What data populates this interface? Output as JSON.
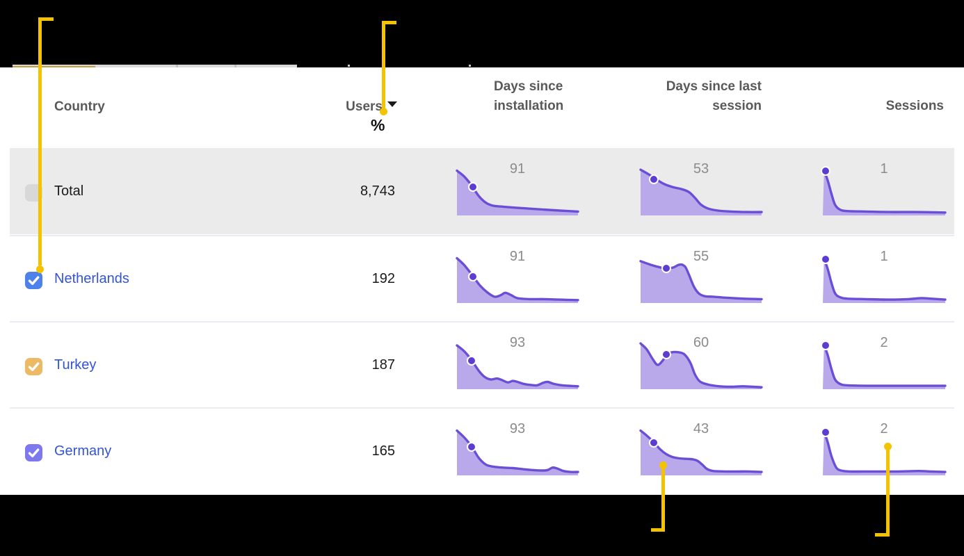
{
  "header": {
    "country": "Country",
    "users": "Users",
    "percent": "%",
    "days_since_installation": "Days since installation",
    "days_since_last_session": "Days since last session",
    "sessions": "Sessions",
    "users_sort_icon": "sort-desc-arrow"
  },
  "colors": {
    "sparkline_stroke": "#6b4ed6",
    "sparkline_fill": "#b9a9ea",
    "sparkline_dot": "#5d3cd2",
    "callout": "#f4c300",
    "link_blue": "#3354d4",
    "total_row_bg": "#ebebeb",
    "header_text": "#595959",
    "value_label_gray": "#8b8b8b",
    "checkbox_netherlands": "#4f81ea",
    "checkbox_turkey": "#ecb964",
    "checkbox_germany": "#7d78ee",
    "checkbox_total_disabled": "#d8d8d8"
  },
  "rows": [
    {
      "label": "Total",
      "users": "8,743",
      "is_total": true,
      "checkbox": {
        "checked": false,
        "color": "#d8d8d8"
      },
      "charts": [
        {
          "column": "days_since_installation",
          "value": "91",
          "dot": [
            13,
            41
          ],
          "points": [
            [
              0,
              8
            ],
            [
              6,
              20
            ],
            [
              12,
              38
            ],
            [
              18,
              60
            ],
            [
              24,
              74
            ],
            [
              30,
              80
            ],
            [
              38,
              82
            ],
            [
              48,
              84
            ],
            [
              60,
              86
            ],
            [
              72,
              88
            ],
            [
              85,
              90
            ],
            [
              100,
              92
            ]
          ]
        },
        {
          "column": "days_since_last_session",
          "value": "53",
          "dot": [
            11,
            25
          ],
          "points": [
            [
              0,
              6
            ],
            [
              7,
              16
            ],
            [
              13,
              26
            ],
            [
              20,
              36
            ],
            [
              27,
              42
            ],
            [
              34,
              46
            ],
            [
              40,
              52
            ],
            [
              45,
              64
            ],
            [
              50,
              78
            ],
            [
              56,
              86
            ],
            [
              64,
              90
            ],
            [
              75,
              92
            ],
            [
              88,
              93
            ],
            [
              100,
              93
            ]
          ]
        },
        {
          "column": "sessions",
          "value": "1",
          "dot": [
            2,
            9
          ],
          "points": [
            [
              1,
              8
            ],
            [
              4,
              28
            ],
            [
              7,
              55
            ],
            [
              10,
              78
            ],
            [
              14,
              88
            ],
            [
              20,
              91
            ],
            [
              35,
              92
            ],
            [
              55,
              93
            ],
            [
              75,
              93
            ],
            [
              100,
              94
            ]
          ]
        }
      ]
    },
    {
      "label": "Netherlands",
      "users": "192",
      "is_total": false,
      "checkbox": {
        "checked": true,
        "color": "#4f81ea"
      },
      "charts": [
        {
          "column": "days_since_installation",
          "value": "91",
          "dot": [
            13,
            45
          ],
          "points": [
            [
              0,
              8
            ],
            [
              6,
              22
            ],
            [
              13,
              44
            ],
            [
              19,
              64
            ],
            [
              25,
              78
            ],
            [
              31,
              87
            ],
            [
              36,
              84
            ],
            [
              40,
              79
            ],
            [
              45,
              84
            ],
            [
              50,
              90
            ],
            [
              60,
              92
            ],
            [
              72,
              92
            ],
            [
              85,
              93
            ],
            [
              100,
              94
            ]
          ]
        },
        {
          "column": "days_since_last_session",
          "value": "55",
          "dot": [
            21,
            29
          ],
          "points": [
            [
              0,
              14
            ],
            [
              8,
              21
            ],
            [
              15,
              26
            ],
            [
              21,
              29
            ],
            [
              27,
              27
            ],
            [
              31,
              22
            ],
            [
              34,
              21
            ],
            [
              37,
              26
            ],
            [
              40,
              42
            ],
            [
              44,
              66
            ],
            [
              48,
              80
            ],
            [
              53,
              86
            ],
            [
              60,
              87
            ],
            [
              70,
              89
            ],
            [
              85,
              91
            ],
            [
              100,
              92
            ]
          ]
        },
        {
          "column": "sessions",
          "value": "1",
          "dot": [
            2,
            10
          ],
          "points": [
            [
              1,
              9
            ],
            [
              4,
              30
            ],
            [
              7,
              58
            ],
            [
              10,
              80
            ],
            [
              14,
              88
            ],
            [
              20,
              91
            ],
            [
              35,
              92
            ],
            [
              55,
              93
            ],
            [
              70,
              92
            ],
            [
              80,
              90
            ],
            [
              88,
              91
            ],
            [
              100,
              93
            ]
          ]
        }
      ]
    },
    {
      "label": "Turkey",
      "users": "187",
      "is_total": false,
      "checkbox": {
        "checked": true,
        "color": "#ecb964"
      },
      "charts": [
        {
          "column": "days_since_installation",
          "value": "93",
          "dot": [
            12,
            41
          ],
          "points": [
            [
              0,
              10
            ],
            [
              6,
              22
            ],
            [
              12,
              40
            ],
            [
              18,
              62
            ],
            [
              23,
              75
            ],
            [
              28,
              80
            ],
            [
              33,
              78
            ],
            [
              37,
              81
            ],
            [
              42,
              86
            ],
            [
              46,
              83
            ],
            [
              50,
              85
            ],
            [
              55,
              89
            ],
            [
              60,
              91
            ],
            [
              66,
              92
            ],
            [
              71,
              87
            ],
            [
              75,
              85
            ],
            [
              80,
              89
            ],
            [
              87,
              92
            ],
            [
              100,
              94
            ]
          ]
        },
        {
          "column": "days_since_last_session",
          "value": "60",
          "dot": [
            21.5,
            28
          ],
          "points": [
            [
              0,
              6
            ],
            [
              5,
              18
            ],
            [
              10,
              38
            ],
            [
              14,
              50
            ],
            [
              18,
              42
            ],
            [
              22,
              28
            ],
            [
              26,
              24
            ],
            [
              31,
              24
            ],
            [
              36,
              28
            ],
            [
              41,
              45
            ],
            [
              45,
              70
            ],
            [
              49,
              84
            ],
            [
              55,
              90
            ],
            [
              65,
              94
            ],
            [
              75,
              95
            ],
            [
              85,
              94
            ],
            [
              100,
              96
            ]
          ]
        },
        {
          "column": "sessions",
          "value": "2",
          "dot": [
            2,
            10
          ],
          "points": [
            [
              1,
              9
            ],
            [
              4,
              30
            ],
            [
              7,
              58
            ],
            [
              10,
              80
            ],
            [
              14,
              89
            ],
            [
              20,
              92
            ],
            [
              40,
              93
            ],
            [
              65,
              93
            ],
            [
              100,
              93
            ]
          ]
        }
      ]
    },
    {
      "label": "Germany",
      "users": "165",
      "is_total": false,
      "checkbox": {
        "checked": true,
        "color": "#7d78ee"
      },
      "charts": [
        {
          "column": "days_since_installation",
          "value": "93",
          "dot": [
            12,
            41
          ],
          "points": [
            [
              0,
              8
            ],
            [
              6,
              22
            ],
            [
              12,
              40
            ],
            [
              18,
              64
            ],
            [
              24,
              78
            ],
            [
              30,
              82
            ],
            [
              38,
              84
            ],
            [
              46,
              85
            ],
            [
              54,
              87
            ],
            [
              62,
              89
            ],
            [
              70,
              90
            ],
            [
              75,
              89
            ],
            [
              79,
              84
            ],
            [
              83,
              86
            ],
            [
              88,
              91
            ],
            [
              94,
              93
            ],
            [
              100,
              93
            ]
          ]
        },
        {
          "column": "days_since_last_session",
          "value": "43",
          "dot": [
            11,
            33
          ],
          "points": [
            [
              0,
              8
            ],
            [
              5,
              18
            ],
            [
              11,
              32
            ],
            [
              16,
              46
            ],
            [
              21,
              56
            ],
            [
              26,
              62
            ],
            [
              32,
              65
            ],
            [
              38,
              66
            ],
            [
              43,
              67
            ],
            [
              47,
              70
            ],
            [
              51,
              78
            ],
            [
              55,
              87
            ],
            [
              60,
              91
            ],
            [
              70,
              92
            ],
            [
              80,
              92
            ],
            [
              90,
              92
            ],
            [
              100,
              93
            ]
          ]
        },
        {
          "column": "sessions",
          "value": "2",
          "dot": [
            2,
            11
          ],
          "points": [
            [
              1,
              10
            ],
            [
              4,
              32
            ],
            [
              7,
              60
            ],
            [
              11,
              84
            ],
            [
              15,
              90
            ],
            [
              22,
              92
            ],
            [
              40,
              92
            ],
            [
              60,
              92
            ],
            [
              78,
              91
            ],
            [
              88,
              92
            ],
            [
              100,
              93
            ]
          ]
        }
      ]
    }
  ],
  "annotations": [
    {
      "target": "netherlands-checkbox"
    },
    {
      "target": "users-sort-control"
    },
    {
      "target": "germany-days-since-last-session-chart"
    },
    {
      "target": "germany-sessions-value"
    }
  ]
}
